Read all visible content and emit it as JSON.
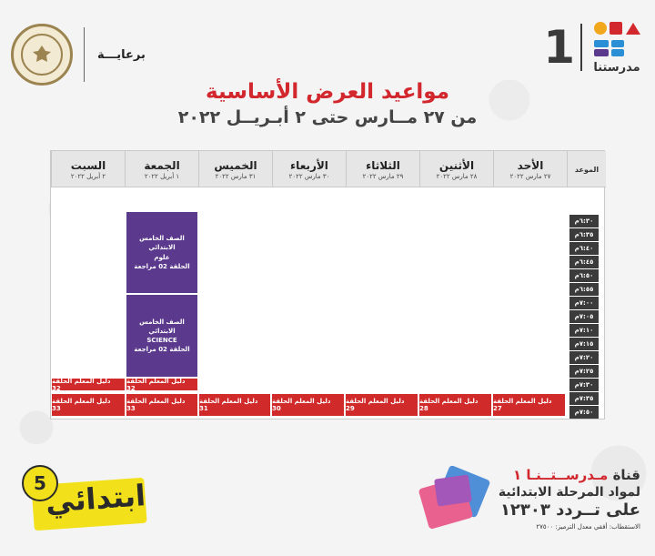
{
  "sponsor": {
    "label": "برعايـــة"
  },
  "brand": {
    "number": "1",
    "name": "مدرستنا"
  },
  "title": "مواعيد العرض الأساسية",
  "subtitle": "من ٢٧ مــارس حتى ٢ أبـريــل ٢٠٢٢",
  "schedule": {
    "time_header": "الموعد",
    "days": [
      {
        "name": "الأحد",
        "date": "٢٧ مارس ٢٠٢٢"
      },
      {
        "name": "الأثنين",
        "date": "٢٨ مارس ٢٠٢٢"
      },
      {
        "name": "الثلاثاء",
        "date": "٢٩ مارس ٢٠٢٢"
      },
      {
        "name": "الأربعاء",
        "date": "٣٠ مارس ٢٠٢٢"
      },
      {
        "name": "الخميس",
        "date": "٣١ مارس ٢٠٢٢"
      },
      {
        "name": "الجمعة",
        "date": "١ أبريل ٢٠٢٢"
      },
      {
        "name": "السبت",
        "date": "٢ أبريل ٢٠٢٢"
      }
    ],
    "times": [
      "٦:٣٠م",
      "٦:٣٥م",
      "٦:٤٠م",
      "٦:٤٥م",
      "٦:٥٠م",
      "٦:٥٥م",
      "٧:٠٠م",
      "٧:٠٥م",
      "٧:١٠م",
      "٧:١٥م",
      "٧:٢٠م",
      "٧:٢٥م",
      "٧:٣٠م",
      "٧:٣٥م",
      "٧:٥٠م"
    ],
    "lessons": [
      {
        "line1": "الصف الخامس الابتدائي",
        "line2": "علوم",
        "line3": "الحلقة 02 مراجعة"
      },
      {
        "line1": "الصف الخامس الابتدائي",
        "line2": "SCIENCE",
        "line3": "الحلقة 02 مراجعة"
      }
    ],
    "teacher_guides": {
      "friday_top": "دليل المعلم الحلقة 32",
      "saturday_top": "دليل المعلم الحلقة 32",
      "row": [
        "دليل المعلم الحلقة 27",
        "دليل المعلم الحلقة 28",
        "دليل المعلم الحلقة 29",
        "دليل المعلم الحلقة 30",
        "دليل المعلم الحلقة 31",
        "دليل المعلم الحلقة 33",
        "دليل المعلم الحلقة 33"
      ]
    }
  },
  "primary_badge": {
    "text": "ابتدائي",
    "grade": "5"
  },
  "channel": {
    "line1_prefix": "قناة",
    "line1_name": "مـدرســتــنـا ١",
    "line2": "لمواد المرحلة الابتدائية",
    "line3": "على تــردد ١٢٣٠٣",
    "line4": "الاستقطاب: أفقي معدل الترميز: ٢٧٥٠٠"
  },
  "colors": {
    "title_red": "#d1272d",
    "lesson_purple": "#5b3a8e",
    "guide_red": "#d12a2a",
    "time_dark": "#3b3b3b",
    "badge_yellow": "#f2e11a"
  }
}
